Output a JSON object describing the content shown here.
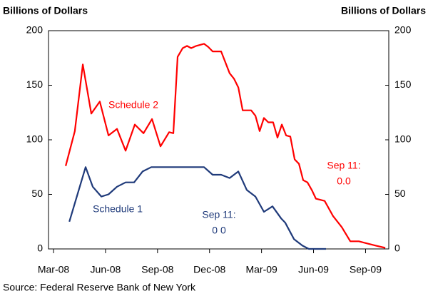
{
  "chart_data": {
    "type": "line",
    "y_label": "Billions of Dollars",
    "y2_label": "Billions of Dollars",
    "source": "Source: Federal Reserve Bank of New York",
    "xlim": [
      -0.29,
      19.34
    ],
    "xticks": [
      {
        "value": 0,
        "label": "Mar-08"
      },
      {
        "value": 3,
        "label": "Jun-08"
      },
      {
        "value": 6,
        "label": "Sep-08"
      },
      {
        "value": 9,
        "label": "Dec-08"
      },
      {
        "value": 12,
        "label": "Mar-09"
      },
      {
        "value": 15,
        "label": "Jun-09"
      },
      {
        "value": 18,
        "label": "Sep-09"
      }
    ],
    "ylim": [
      0,
      200
    ],
    "yticks": [
      0,
      50,
      100,
      150,
      200
    ],
    "y2lim": [
      0,
      200
    ],
    "y2ticks": [
      0,
      50,
      100,
      150,
      200
    ],
    "series": [
      {
        "name": "Schedule 2",
        "color": "#ff0000",
        "x": [
          0.7,
          1.23,
          1.69,
          2.18,
          2.67,
          3.17,
          3.66,
          4.16,
          4.69,
          5.19,
          5.68,
          6.17,
          6.67,
          6.91,
          7.16,
          7.45,
          7.7,
          7.94,
          8.23,
          8.68,
          8.93,
          9.18,
          9.67,
          10.16,
          10.41,
          10.66,
          10.91,
          11.4,
          11.65,
          11.89,
          12.14,
          12.39,
          12.67,
          12.92,
          13.17,
          13.42,
          13.66,
          13.91,
          14.16,
          14.4,
          14.65,
          14.9,
          15.14,
          15.64,
          16.13,
          16.63,
          17.12,
          17.61,
          18.11,
          18.6,
          19.14
        ],
        "values": [
          76,
          108,
          169,
          124,
          135,
          104,
          110,
          90,
          114,
          106,
          119,
          94,
          107,
          106,
          176,
          184,
          186,
          184,
          186,
          188,
          185,
          181,
          181,
          161,
          156,
          148,
          127,
          127,
          122,
          108,
          120,
          116,
          116,
          102,
          114,
          104,
          103,
          82,
          78,
          63,
          61,
          54,
          46,
          44,
          30,
          20,
          7,
          7,
          5,
          3,
          1
        ]
      },
      {
        "name": "Schedule 1",
        "color": "#1f3a7a",
        "x": [
          0.91,
          1.85,
          2.26,
          2.76,
          3.17,
          3.66,
          4.16,
          4.65,
          5.14,
          5.64,
          6.17,
          6.67,
          7.16,
          7.7,
          8.23,
          8.68,
          9.18,
          9.67,
          10.16,
          10.66,
          11.15,
          11.65,
          12.14,
          12.63,
          13.13,
          13.37,
          13.87,
          14.36,
          14.73,
          15.23,
          15.72
        ],
        "values": [
          25,
          75,
          57,
          48,
          50,
          57,
          61,
          61,
          71,
          75,
          75,
          75,
          75,
          75,
          75,
          75,
          68,
          68,
          65,
          71,
          54,
          48,
          34,
          39,
          28,
          24,
          9,
          3,
          0,
          0,
          0
        ]
      }
    ],
    "annotations": [
      {
        "lines": [
          "Sep 11:",
          "0.0"
        ],
        "color": "#ff0000"
      },
      {
        "lines": [
          "Sep 11:",
          "0 0"
        ],
        "color": "#1f3a7a"
      }
    ]
  }
}
